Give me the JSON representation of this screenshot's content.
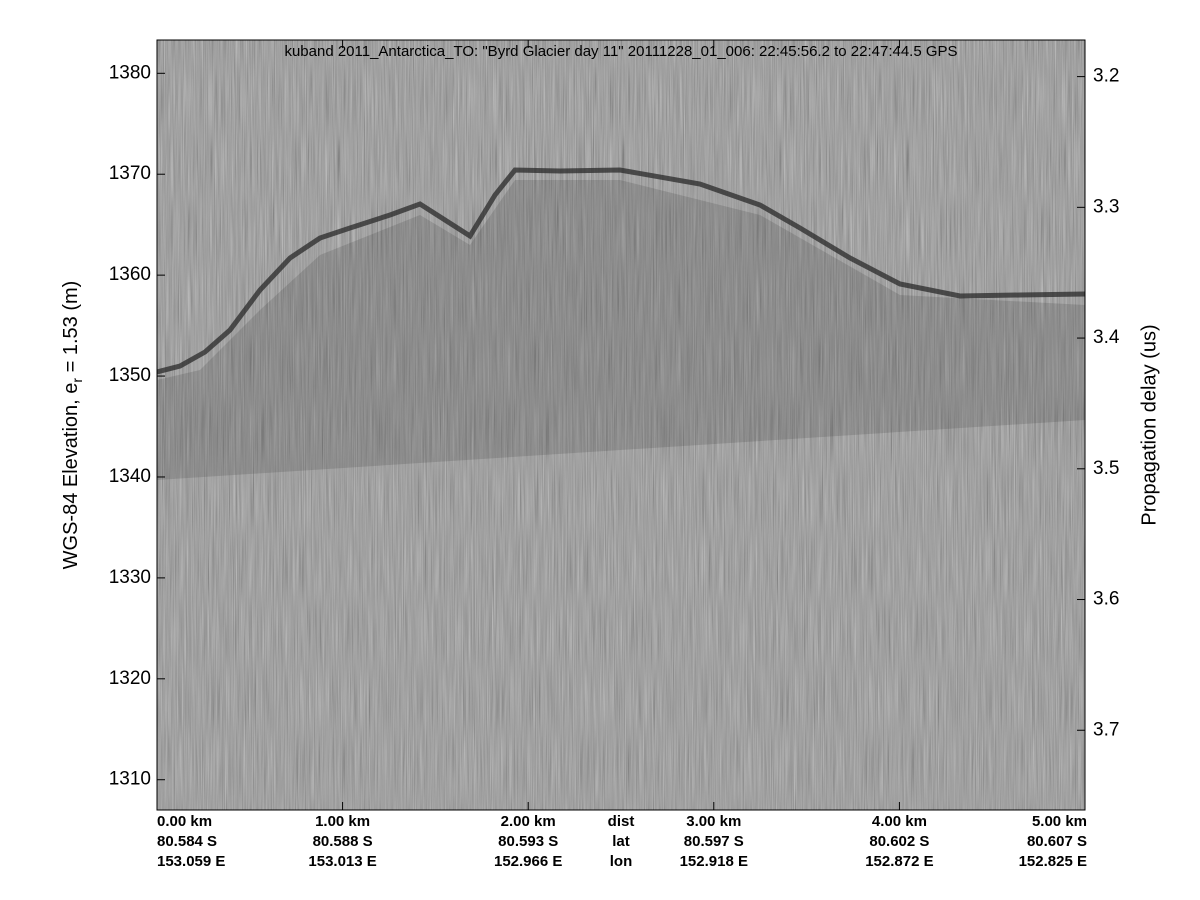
{
  "chart_data": {
    "type": "echogram",
    "title": "kuband 2011_Antarctica_TO: \"Byrd Glacier day 11\"  20111228_01_006: 22:45:56.2 to 22:47:44.5 GPS",
    "ylabel": {
      "text": "WGS-84 Elevation, e",
      "subscript": "r",
      "rest": " = 1.53 (m)"
    },
    "y2label": "Propagation delay (us)",
    "xlim": [
      0,
      5
    ],
    "xticks": [
      {
        "value": 0,
        "label": "0.00 km"
      },
      {
        "value": 1,
        "label": "1.00 km"
      },
      {
        "value": 2,
        "label": "2.00 km"
      },
      {
        "value": 3,
        "label": "3.00 km"
      },
      {
        "value": 4,
        "label": "4.00 km"
      },
      {
        "value": 5,
        "label": "5.00 km"
      }
    ],
    "xtick_lat": [
      "80.584 S",
      "80.588 S",
      "80.593 S",
      "80.597 S",
      "80.602 S",
      "80.607 S"
    ],
    "xtick_lon": [
      "153.059 E",
      "153.013 E",
      "152.966 E",
      "152.918 E",
      "152.872 E",
      "152.825 E"
    ],
    "row_labels": [
      "dist",
      "lat",
      "lon"
    ],
    "ylim": [
      1307.0,
      1383.3
    ],
    "yticks": [
      1310,
      1320,
      1330,
      1340,
      1350,
      1360,
      1370,
      1380
    ],
    "y2lim": [
      3.761,
      3.172
    ],
    "y2ticks": [
      3.2,
      3.3,
      3.4,
      3.5,
      3.6,
      3.7
    ]
  }
}
